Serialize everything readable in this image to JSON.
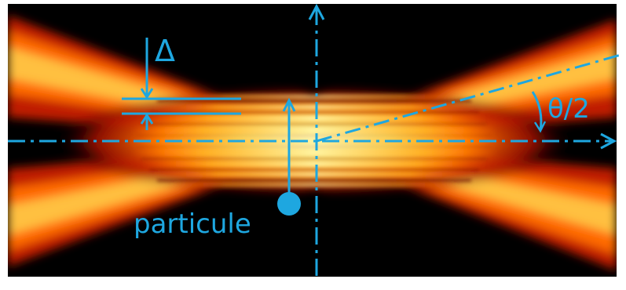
{
  "figure": {
    "labels": {
      "delta": "Δ",
      "angle": "θ/2",
      "particle": "particule"
    },
    "colors": {
      "annotation": "#1ea7e0",
      "fringe_hot": "#fff59a",
      "fringe_mid": "#ff8a00",
      "fringe_low": "#c01000",
      "background": "#000000",
      "frame": "#ffffff"
    }
  }
}
